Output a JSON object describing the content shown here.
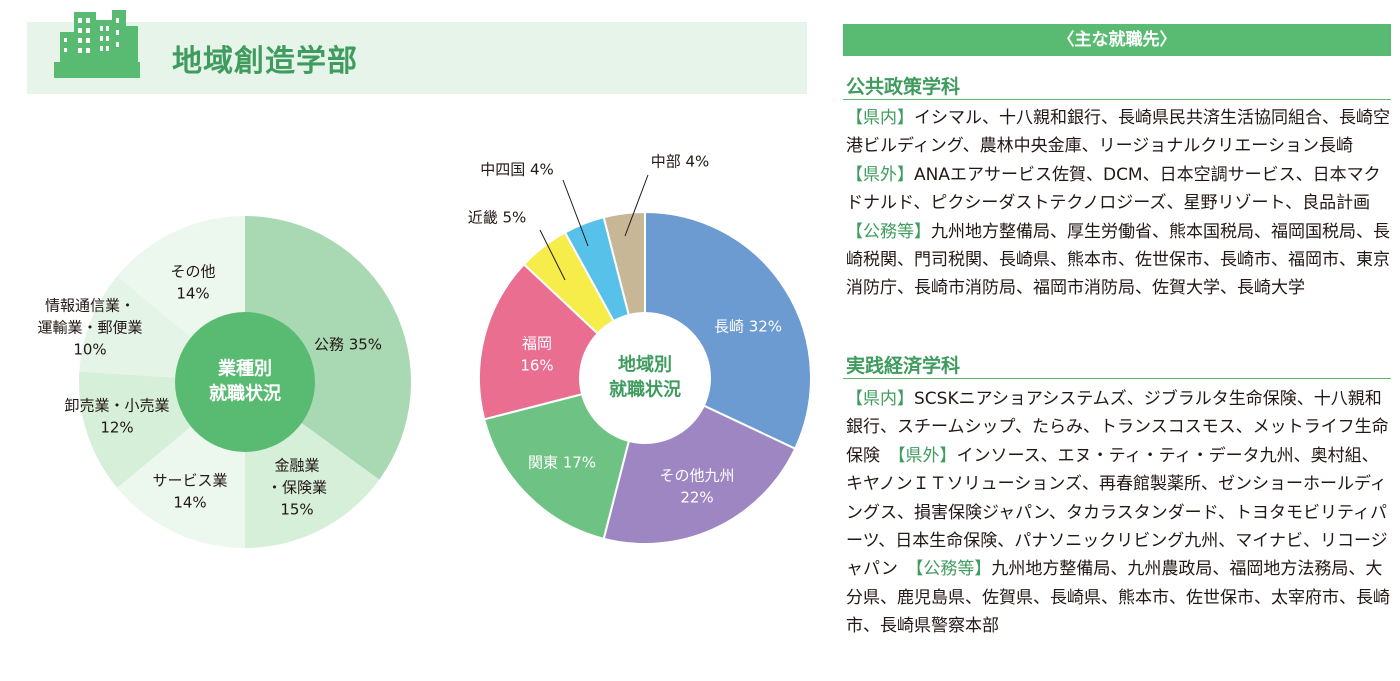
{
  "header": {
    "title": "地域創造学部",
    "employers_heading": "〈主な就職先〉"
  },
  "colors": {
    "accent": "#59bb72",
    "accent_text": "#3f9c5e",
    "header_bg": "#e6f4e9"
  },
  "icons": [
    "buildings-icon"
  ],
  "departments": [
    {
      "name": "公共政策学科",
      "segments": [
        {
          "tag": "【県内】",
          "text": "イシマル、十八親和銀行、長崎県民共済生活協同組合、長崎空港ビルディング、農林中央金庫、リージョナルクリエーション長崎"
        },
        {
          "tag": "【県外】",
          "text": "ANAエアサービス佐賀、DCM、日本空調サービス、日本マクドナルド、ピクシーダストテクノロジーズ、星野リゾート、良品計画"
        },
        {
          "tag": "【公務等】",
          "text": "九州地方整備局、厚生労働省、熊本国税局、福岡国税局、長崎税関、門司税関、長崎県、熊本市、佐世保市、長崎市、福岡市、東京消防庁、長崎市消防局、福岡市消防局、佐賀大学、長崎大学"
        }
      ]
    },
    {
      "name": "実践経済学科",
      "segments": [
        {
          "tag": "【県内】",
          "text": "SCSKニアショアシステムズ、ジブラルタ生命保険、十八親和銀行、スチームシップ、たらみ、トランスコスモス、メットライフ生命保険"
        },
        {
          "tag": "【県外】",
          "text": "インソース、エヌ・ティ・ティ・データ九州、奥村組、キヤノンＩＴソリューションズ、再春館製薬所、ゼンショーホールディングス、損害保険ジャパン、タカラスタンダード、トヨタモビリティパーツ、日本生命保険、パナソニックリビング九州、マイナビ、リコージャパン"
        },
        {
          "tag": "【公務等】",
          "text": "九州地方整備局、九州農政局、福岡地方法務局、大分県、鹿児島県、佐賀県、長崎県、熊本市、佐世保市、太宰府市、長崎市、長崎県警察本部"
        }
      ]
    }
  ],
  "chart_data": [
    {
      "type": "pie",
      "center_label": [
        "業種別",
        "就職状況"
      ],
      "slices": [
        {
          "label": "公務",
          "value": 35,
          "display": [
            "公務 35%"
          ],
          "color": "#a8d9b2"
        },
        {
          "label": "金融業・保険業",
          "value": 15,
          "display": [
            "金融業",
            "・保険業",
            "15%"
          ],
          "color": "#d6efd9"
        },
        {
          "label": "サービス業",
          "value": 14,
          "display": [
            "サービス業",
            "14%"
          ],
          "color": "#ecf7ee"
        },
        {
          "label": "卸売業・小売業",
          "value": 12,
          "display": [
            "卸売業・小売業",
            "12%"
          ],
          "color": "#d6efd9"
        },
        {
          "label": "情報通信業・運輸業・郵便業",
          "value": 10,
          "display": [
            "情報通信業・",
            "運輸業・郵便業",
            "10%"
          ],
          "color": "#e4f4e7"
        },
        {
          "label": "その他",
          "value": 14,
          "display": [
            "その他",
            "14%"
          ],
          "color": "#ecf7ee"
        }
      ]
    },
    {
      "type": "pie",
      "center_label": [
        "地域別",
        "就職状況"
      ],
      "slices": [
        {
          "label": "長崎",
          "value": 32,
          "display": [
            "長崎 32%"
          ],
          "color": "#6c9bd1"
        },
        {
          "label": "その他九州",
          "value": 22,
          "display": [
            "その他九州",
            "22%"
          ],
          "color": "#9d86c2"
        },
        {
          "label": "関東",
          "value": 17,
          "display": [
            "関東 17%"
          ],
          "color": "#6ec384"
        },
        {
          "label": "福岡",
          "value": 16,
          "display": [
            "福岡",
            "16%"
          ],
          "color": "#ea6e90"
        },
        {
          "label": "近畿",
          "value": 5,
          "display": [
            "近畿 5%"
          ],
          "color": "#f6ec4a"
        },
        {
          "label": "中四国",
          "value": 4,
          "display": [
            "中四国 4%"
          ],
          "color": "#57c1ea"
        },
        {
          "label": "中部",
          "value": 4,
          "display": [
            "中部 4%"
          ],
          "color": "#c8b797"
        }
      ]
    }
  ]
}
